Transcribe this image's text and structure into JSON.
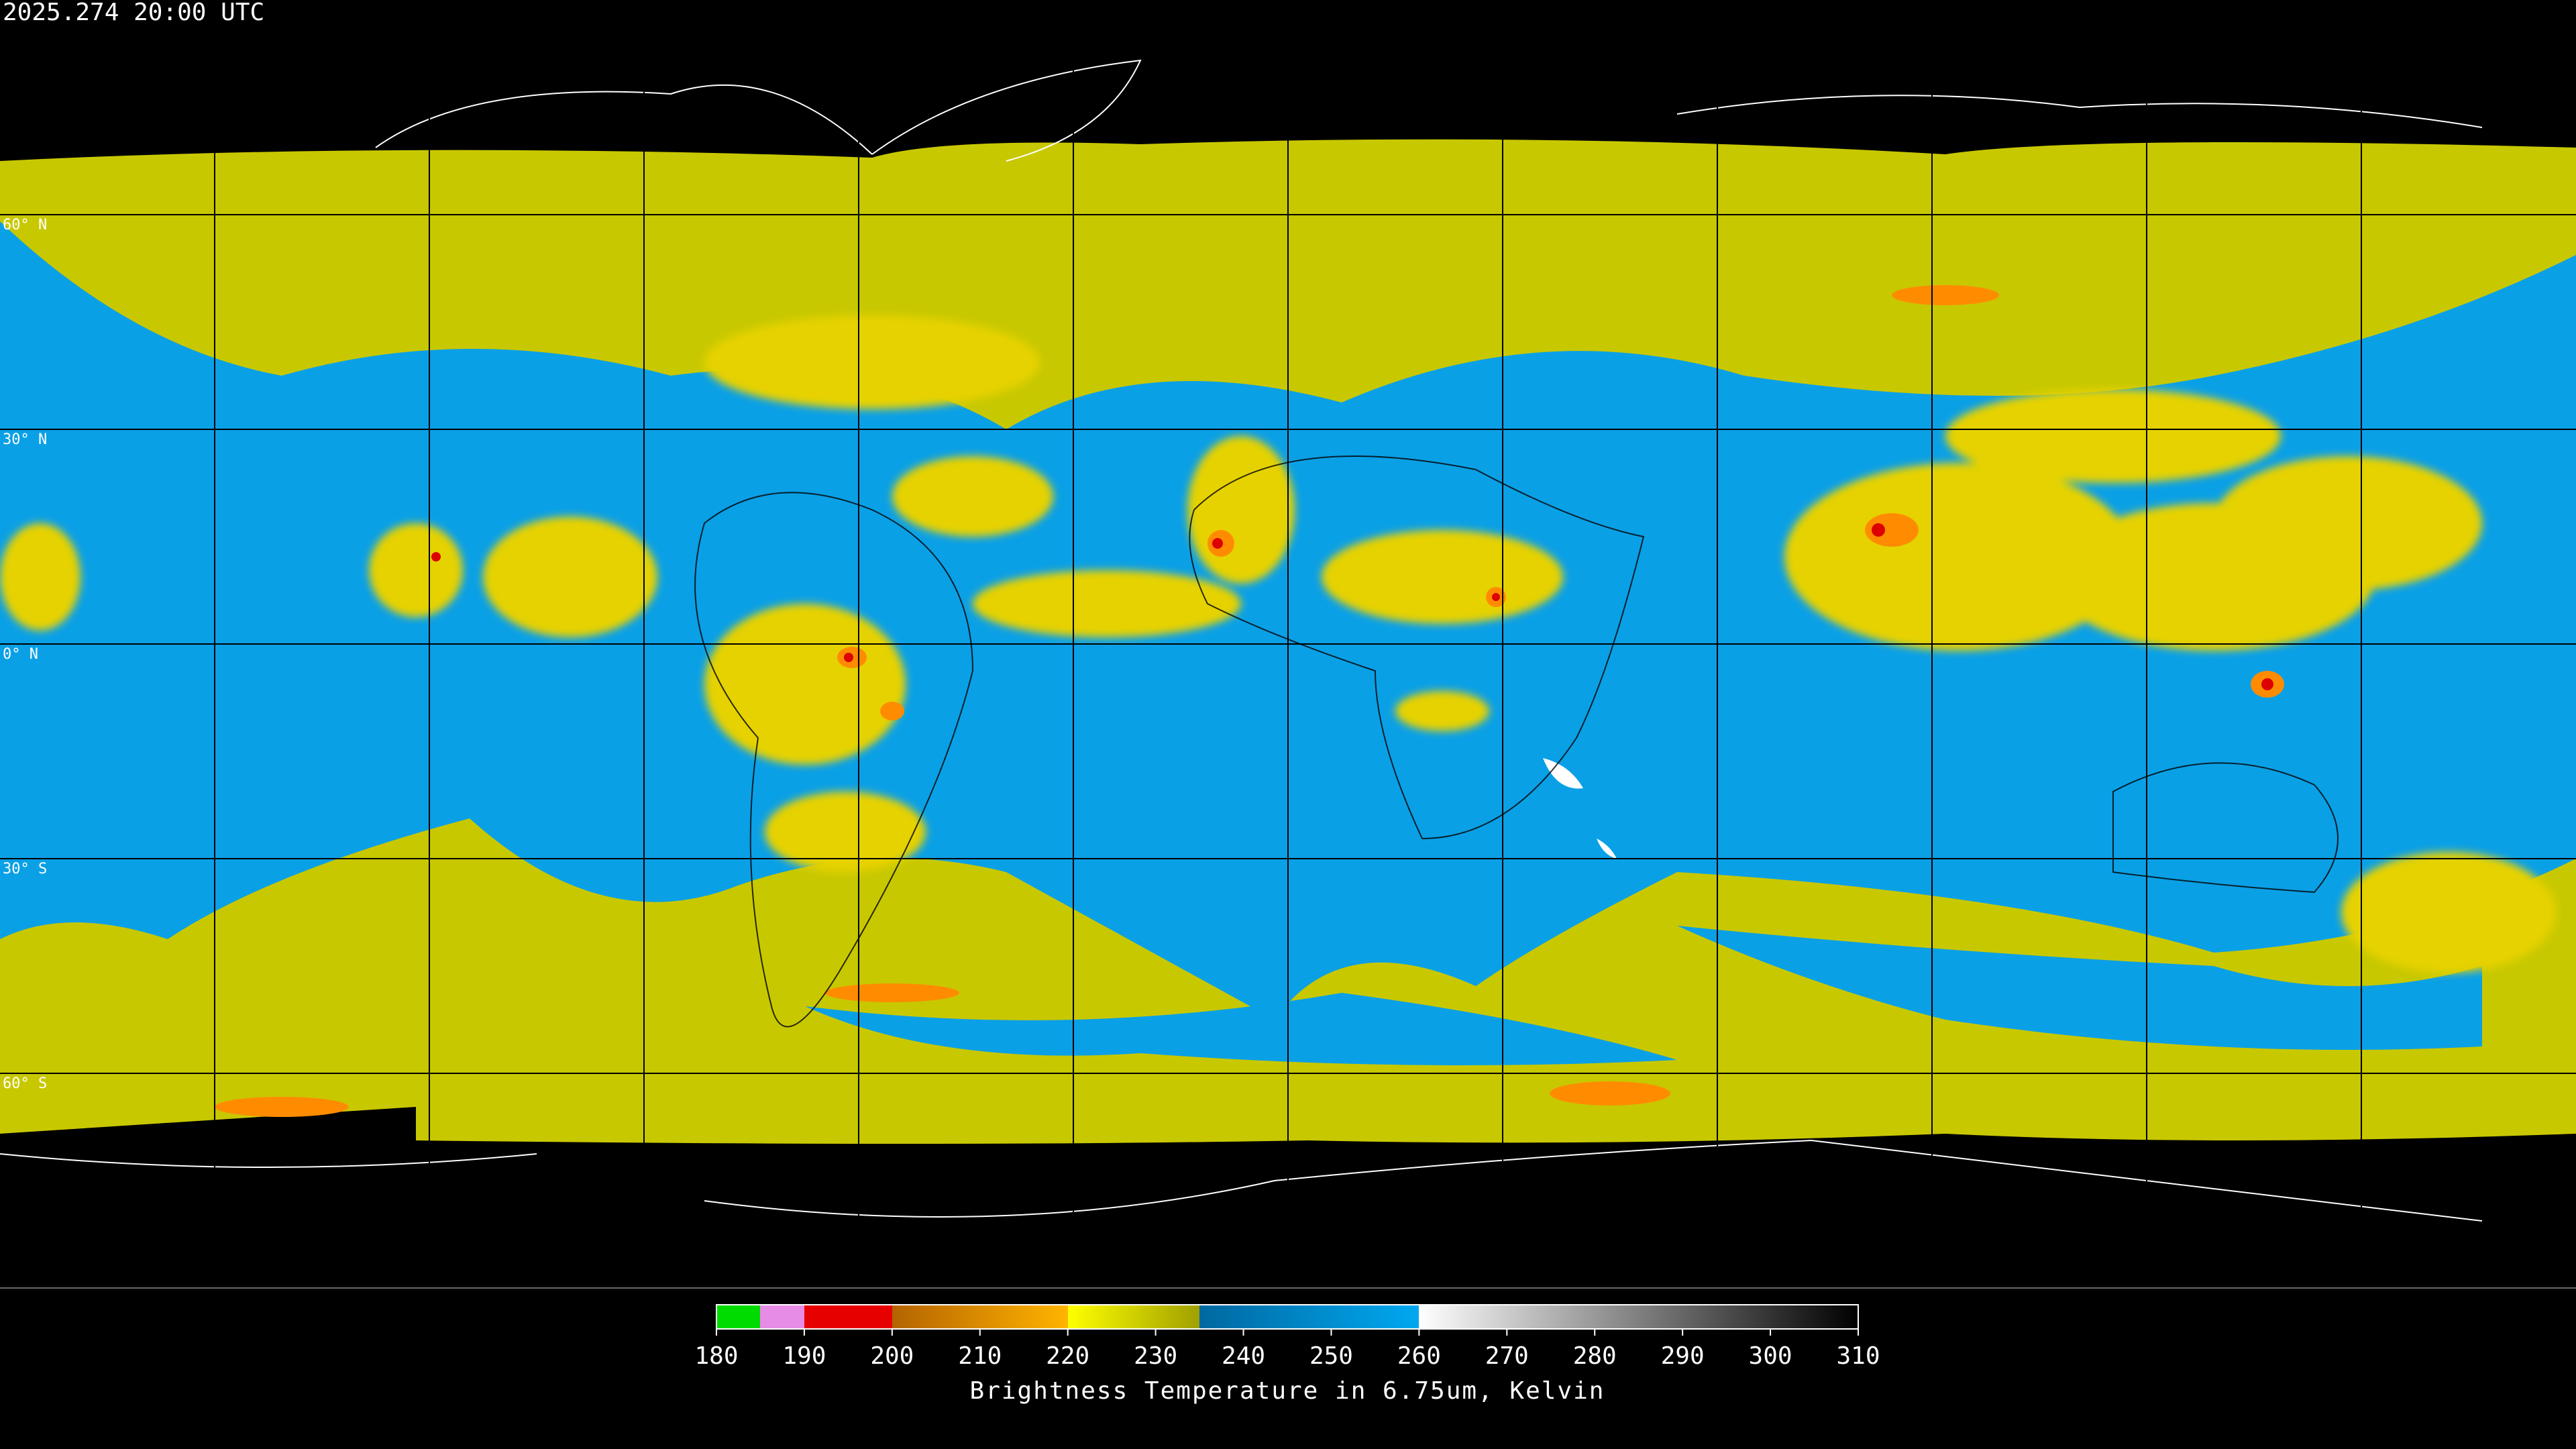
{
  "title": "2025.274 20:00 UTC",
  "latitude_labels": [
    "60° N",
    "30° N",
    "0° N",
    "30° S",
    "60° S"
  ],
  "colorbar": {
    "ticks": [
      "180",
      "190",
      "200",
      "210",
      "220",
      "230",
      "240",
      "250",
      "260",
      "270",
      "280",
      "290",
      "300",
      "310"
    ],
    "label": "Brightness Temperature in 6.75um, Kelvin"
  }
}
